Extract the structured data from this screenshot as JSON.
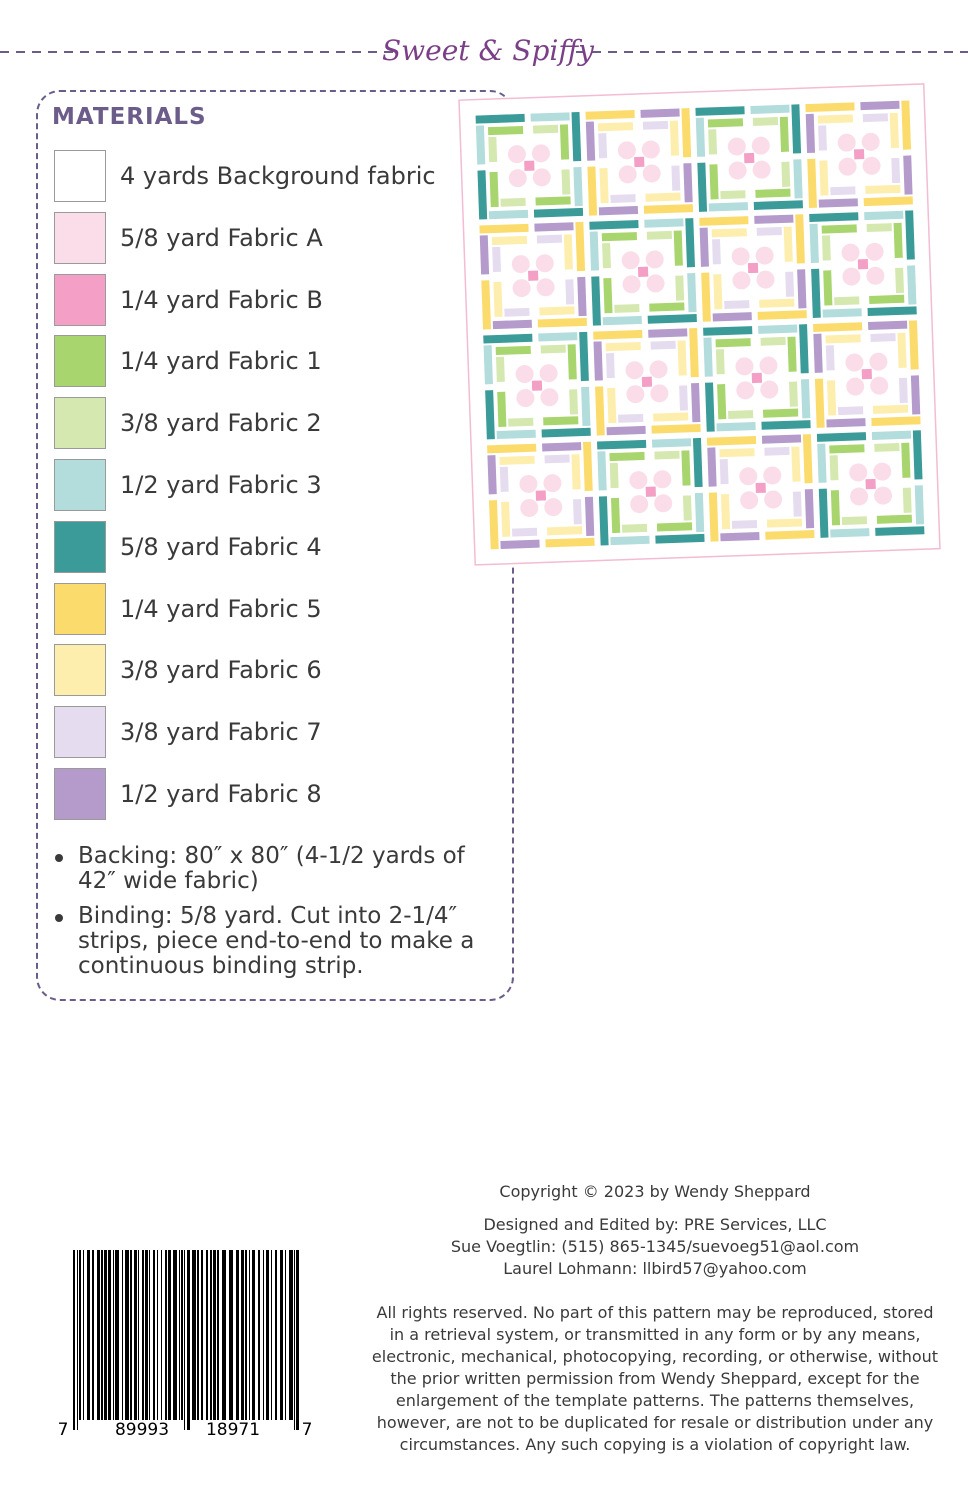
{
  "header": {
    "brand": "Sweet & Spiffy"
  },
  "materials": {
    "title": "MATERIALS",
    "items": [
      {
        "label": "4 yards Background fabric",
        "color": "#ffffff"
      },
      {
        "label": "5/8 yard Fabric A",
        "color": "#fbdde9"
      },
      {
        "label": "1/4 yard Fabric B",
        "color": "#f4a0c6"
      },
      {
        "label": "1/4 yard Fabric 1",
        "color": "#a8d56d"
      },
      {
        "label": "3/8 yard Fabric 2",
        "color": "#d4e8b0"
      },
      {
        "label": "1/2 yard Fabric 3",
        "color": "#b3dcdc"
      },
      {
        "label": "5/8 yard Fabric 4",
        "color": "#3a9b98"
      },
      {
        "label": "1/4 yard Fabric 5",
        "color": "#fbdb6c"
      },
      {
        "label": "3/8 yard Fabric 6",
        "color": "#fdeeae"
      },
      {
        "label": "3/8 yard Fabric 7",
        "color": "#e6dcef"
      },
      {
        "label": "1/2 yard Fabric 8",
        "color": "#b49bcb"
      }
    ],
    "notes": [
      "Backing: 80″ x 80″ (4-1/2 yards of 42″ wide fabric)",
      "Binding: 5/8 yard. Cut into 2-1/4″ strips, piece end-to-end to make a continuous binding strip."
    ]
  },
  "barcode": {
    "digits": [
      "7",
      "89993",
      "18971",
      "7"
    ]
  },
  "footer": {
    "copyright": "Copyright © 2023 by Wendy Sheppard",
    "credits": [
      "Designed and Edited by: PRE Services, LLC",
      "Sue Voegtlin: (515) 865-1345/suevoeg51@aol.com",
      "Laurel Lohmann: llbird57@yahoo.com"
    ],
    "rights": [
      "All rights reserved. No part of this pattern may be reproduced, stored",
      "in a retrieval system, or transmitted in any form or by any means,",
      "electronic, mechanical, photocopying, recording, or otherwise, without",
      "the prior written permission from Wendy Sheppard, except for the",
      "enlargement of the template patterns. The patterns themselves,",
      "however, are not to be duplicated for resale or distribution under any",
      "circumstances. Any such copying is a violation of copyright law."
    ]
  }
}
